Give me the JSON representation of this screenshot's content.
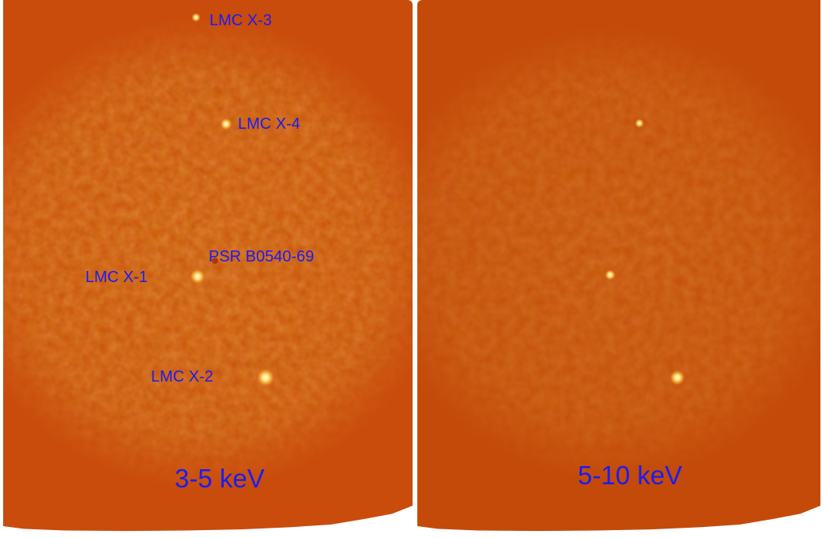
{
  "panels": [
    {
      "band_label": "3-5 keV",
      "source_labels": {
        "lmc_x3": "LMC X-3",
        "lmc_x4": "LMC X-4",
        "psr": "PSR B0540-69",
        "lmc_x1": "LMC X-1",
        "lmc_x2": "LMC X-2"
      },
      "background_color": "#c94c0c",
      "source_color": "#fff2a0"
    },
    {
      "band_label": "5-10 keV",
      "background_color": "#c44a0a",
      "source_color": "#fff2a0"
    }
  ]
}
